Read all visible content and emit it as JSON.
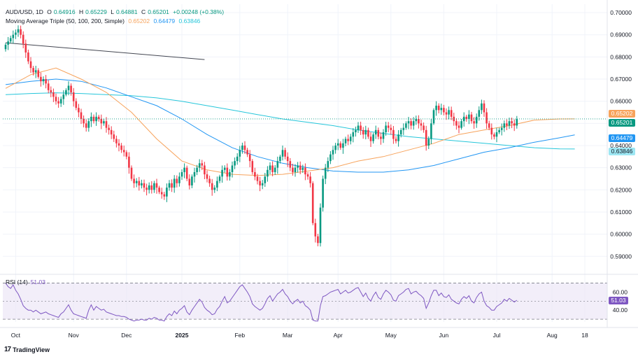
{
  "header": {
    "symbol_line": "AUD/USD, 1D",
    "open_label": "O",
    "open": "0.64916",
    "high_label": "H",
    "high": "0.65229",
    "low_label": "L",
    "low": "0.64881",
    "close_label": "C",
    "close": "0.65201",
    "change": "+0.00248 (+0.38%)",
    "indicator_title": "Moving Average Triple (50, 100, 200, Simple)",
    "ma50": "0.65202",
    "ma100": "0.64479",
    "ma200": "0.63846"
  },
  "rsi_header": {
    "label": "RSI (14)",
    "value": "51.03"
  },
  "branding": {
    "name": "TradingView",
    "mark": "17"
  },
  "colors": {
    "up": "#089981",
    "down": "#f23645",
    "ma50": "#f7a35c",
    "ma100": "#2196f3",
    "ma200": "#26c6da",
    "rsi": "#7e57c2",
    "rsi_band": "#ede7f6",
    "trendline": "#434651"
  },
  "chart_data": {
    "type": "candlestick",
    "series_name": "AUD/USD",
    "y_ticks": [
      "0.70000",
      "0.69000",
      "0.68000",
      "0.67000",
      "0.66000",
      "0.65000",
      "0.64000",
      "0.63000",
      "0.62000",
      "0.61000",
      "0.60000",
      "0.59000"
    ],
    "y_tick_values": [
      0.7,
      0.69,
      0.68,
      0.67,
      0.66,
      0.65,
      0.64,
      0.63,
      0.62,
      0.61,
      0.6,
      0.59
    ],
    "ylim": [
      0.5844,
      0.7038
    ],
    "x_labels": [
      {
        "label": "Oct",
        "index": 4
      },
      {
        "label": "Nov",
        "index": 27
      },
      {
        "label": "Dec",
        "index": 48
      },
      {
        "label": "2025",
        "index": 70
      },
      {
        "label": "Feb",
        "index": 93
      },
      {
        "label": "Mar",
        "index": 112
      },
      {
        "label": "Apr",
        "index": 132
      },
      {
        "label": "May",
        "index": 153
      },
      {
        "label": "Jun",
        "index": 174
      },
      {
        "label": "Jul",
        "index": 195
      },
      {
        "label": "Aug",
        "index": 217
      },
      {
        "label": "18",
        "index": 230
      }
    ],
    "price_tags": [
      {
        "name": "ma50",
        "value": 0.65202,
        "text": "0.65202"
      },
      {
        "name": "close",
        "value": 0.65201,
        "text": "0.65201"
      },
      {
        "name": "ma100",
        "value": 0.64479,
        "text": "0.64479"
      },
      {
        "name": "ma200",
        "value": 0.63846,
        "text": "0.63846"
      }
    ],
    "trendline": {
      "start": {
        "index": 0,
        "value": 0.6864
      },
      "end": {
        "index": 79,
        "value": 0.6788
      }
    },
    "candles_close": [
      0.6855,
      0.687,
      0.6885,
      0.69,
      0.691,
      0.6925,
      0.69,
      0.686,
      0.682,
      0.678,
      0.675,
      0.673,
      0.674,
      0.671,
      0.669,
      0.67,
      0.668,
      0.665,
      0.664,
      0.662,
      0.66,
      0.659,
      0.661,
      0.663,
      0.665,
      0.667,
      0.664,
      0.66,
      0.657,
      0.655,
      0.652,
      0.65,
      0.648,
      0.651,
      0.653,
      0.651,
      0.653,
      0.652,
      0.65,
      0.651,
      0.648,
      0.647,
      0.645,
      0.643,
      0.641,
      0.64,
      0.638,
      0.637,
      0.635,
      0.63,
      0.625,
      0.623,
      0.624,
      0.622,
      0.623,
      0.621,
      0.62,
      0.622,
      0.62,
      0.623,
      0.621,
      0.619,
      0.618,
      0.617,
      0.621,
      0.623,
      0.621,
      0.625,
      0.623,
      0.626,
      0.628,
      0.63,
      0.625,
      0.622,
      0.626,
      0.628,
      0.63,
      0.632,
      0.631,
      0.627,
      0.625,
      0.623,
      0.62,
      0.621,
      0.624,
      0.626,
      0.629,
      0.63,
      0.626,
      0.628,
      0.631,
      0.633,
      0.635,
      0.638,
      0.64,
      0.638,
      0.636,
      0.633,
      0.628,
      0.626,
      0.624,
      0.622,
      0.623,
      0.626,
      0.629,
      0.631,
      0.628,
      0.63,
      0.633,
      0.635,
      0.638,
      0.635,
      0.633,
      0.63,
      0.628,
      0.63,
      0.631,
      0.629,
      0.63,
      0.627,
      0.626,
      0.623,
      0.605,
      0.599,
      0.596,
      0.612,
      0.625,
      0.63,
      0.633,
      0.636,
      0.638,
      0.64,
      0.641,
      0.639,
      0.641,
      0.643,
      0.642,
      0.644,
      0.646,
      0.647,
      0.649,
      0.647,
      0.645,
      0.647,
      0.644,
      0.642,
      0.645,
      0.647,
      0.644,
      0.643,
      0.646,
      0.649,
      0.648,
      0.647,
      0.643,
      0.642,
      0.645,
      0.647,
      0.648,
      0.65,
      0.651,
      0.649,
      0.651,
      0.652,
      0.65,
      0.649,
      0.647,
      0.64,
      0.643,
      0.65,
      0.656,
      0.658,
      0.656,
      0.657,
      0.655,
      0.654,
      0.656,
      0.653,
      0.651,
      0.649,
      0.648,
      0.651,
      0.653,
      0.652,
      0.654,
      0.651,
      0.65,
      0.653,
      0.656,
      0.659,
      0.655,
      0.65,
      0.648,
      0.645,
      0.644,
      0.646,
      0.647,
      0.648,
      0.65,
      0.649,
      0.651,
      0.65,
      0.649,
      0.652
    ],
    "ma50": [
      {
        "index": 0,
        "value": 0.6658
      },
      {
        "index": 10,
        "value": 0.672
      },
      {
        "index": 20,
        "value": 0.675
      },
      {
        "index": 30,
        "value": 0.67
      },
      {
        "index": 40,
        "value": 0.664
      },
      {
        "index": 50,
        "value": 0.655
      },
      {
        "index": 60,
        "value": 0.643
      },
      {
        "index": 70,
        "value": 0.633
      },
      {
        "index": 80,
        "value": 0.629
      },
      {
        "index": 90,
        "value": 0.627
      },
      {
        "index": 100,
        "value": 0.6265
      },
      {
        "index": 110,
        "value": 0.627
      },
      {
        "index": 120,
        "value": 0.6285
      },
      {
        "index": 130,
        "value": 0.63
      },
      {
        "index": 140,
        "value": 0.633
      },
      {
        "index": 150,
        "value": 0.635
      },
      {
        "index": 160,
        "value": 0.638
      },
      {
        "index": 170,
        "value": 0.641
      },
      {
        "index": 180,
        "value": 0.645
      },
      {
        "index": 190,
        "value": 0.647
      },
      {
        "index": 200,
        "value": 0.649
      },
      {
        "index": 210,
        "value": 0.6515
      },
      {
        "index": 220,
        "value": 0.652
      },
      {
        "index": 226,
        "value": 0.65202
      }
    ],
    "ma100": [
      {
        "index": 0,
        "value": 0.6675
      },
      {
        "index": 10,
        "value": 0.669
      },
      {
        "index": 20,
        "value": 0.67
      },
      {
        "index": 30,
        "value": 0.669
      },
      {
        "index": 40,
        "value": 0.666
      },
      {
        "index": 50,
        "value": 0.662
      },
      {
        "index": 60,
        "value": 0.658
      },
      {
        "index": 70,
        "value": 0.652
      },
      {
        "index": 80,
        "value": 0.645
      },
      {
        "index": 90,
        "value": 0.639
      },
      {
        "index": 100,
        "value": 0.635
      },
      {
        "index": 110,
        "value": 0.632
      },
      {
        "index": 120,
        "value": 0.63
      },
      {
        "index": 130,
        "value": 0.6285
      },
      {
        "index": 140,
        "value": 0.628
      },
      {
        "index": 150,
        "value": 0.628
      },
      {
        "index": 160,
        "value": 0.629
      },
      {
        "index": 170,
        "value": 0.631
      },
      {
        "index": 180,
        "value": 0.634
      },
      {
        "index": 190,
        "value": 0.637
      },
      {
        "index": 200,
        "value": 0.639
      },
      {
        "index": 210,
        "value": 0.6415
      },
      {
        "index": 220,
        "value": 0.6435
      },
      {
        "index": 226,
        "value": 0.64479
      }
    ],
    "ma200": [
      {
        "index": 0,
        "value": 0.663
      },
      {
        "index": 10,
        "value": 0.6635
      },
      {
        "index": 20,
        "value": 0.6638
      },
      {
        "index": 30,
        "value": 0.6635
      },
      {
        "index": 40,
        "value": 0.663
      },
      {
        "index": 50,
        "value": 0.6625
      },
      {
        "index": 60,
        "value": 0.6615
      },
      {
        "index": 70,
        "value": 0.66
      },
      {
        "index": 80,
        "value": 0.658
      },
      {
        "index": 90,
        "value": 0.656
      },
      {
        "index": 100,
        "value": 0.654
      },
      {
        "index": 110,
        "value": 0.652
      },
      {
        "index": 120,
        "value": 0.6505
      },
      {
        "index": 130,
        "value": 0.649
      },
      {
        "index": 140,
        "value": 0.647
      },
      {
        "index": 150,
        "value": 0.6455
      },
      {
        "index": 160,
        "value": 0.644
      },
      {
        "index": 170,
        "value": 0.643
      },
      {
        "index": 180,
        "value": 0.642
      },
      {
        "index": 190,
        "value": 0.641
      },
      {
        "index": 200,
        "value": 0.64
      },
      {
        "index": 210,
        "value": 0.639
      },
      {
        "index": 220,
        "value": 0.6385
      },
      {
        "index": 226,
        "value": 0.63846
      }
    ],
    "rsi": {
      "y_ticks": [
        "60.00",
        "40.00"
      ],
      "y_tick_values": [
        60,
        40
      ],
      "band": [
        30,
        70
      ],
      "mid": 50,
      "ylim": [
        27,
        75
      ],
      "current": 51.03,
      "values": [
        70,
        66,
        64,
        68,
        62,
        58,
        52,
        45,
        42,
        40,
        40,
        38,
        40,
        38,
        36,
        37,
        38,
        36,
        35,
        34,
        33,
        32,
        36,
        38,
        42,
        46,
        40,
        36,
        35,
        34,
        33,
        32,
        31,
        40,
        46,
        40,
        44,
        42,
        40,
        41,
        38,
        37,
        36,
        35,
        34,
        34,
        33,
        33,
        32,
        30,
        29,
        28,
        29,
        29,
        30,
        29,
        29,
        31,
        30,
        32,
        31,
        29,
        29,
        28,
        33,
        36,
        34,
        39,
        36,
        40,
        42,
        45,
        38,
        35,
        40,
        44,
        48,
        52,
        49,
        43,
        40,
        38,
        35,
        36,
        41,
        44,
        50,
        55,
        48,
        50,
        54,
        58,
        62,
        66,
        68,
        64,
        60,
        55,
        47,
        44,
        42,
        40,
        42,
        47,
        53,
        56,
        50,
        54,
        58,
        60,
        63,
        58,
        55,
        50,
        47,
        50,
        52,
        48,
        50,
        45,
        43,
        40,
        29,
        28,
        28,
        45,
        55,
        56,
        58,
        60,
        61,
        62,
        63,
        58,
        60,
        62,
        59,
        60,
        62,
        64,
        65,
        60,
        55,
        59,
        53,
        50,
        56,
        60,
        54,
        52,
        58,
        62,
        60,
        57,
        51,
        50,
        56,
        58,
        60,
        63,
        64,
        58,
        60,
        61,
        58,
        56,
        53,
        42,
        48,
        56,
        62,
        62,
        56,
        59,
        55,
        54,
        57,
        52,
        50,
        48,
        47,
        52,
        55,
        53,
        56,
        50,
        48,
        54,
        58,
        60,
        50,
        45,
        43,
        40,
        40,
        44,
        46,
        48,
        52,
        50,
        53,
        51,
        49,
        51.03
      ]
    }
  }
}
